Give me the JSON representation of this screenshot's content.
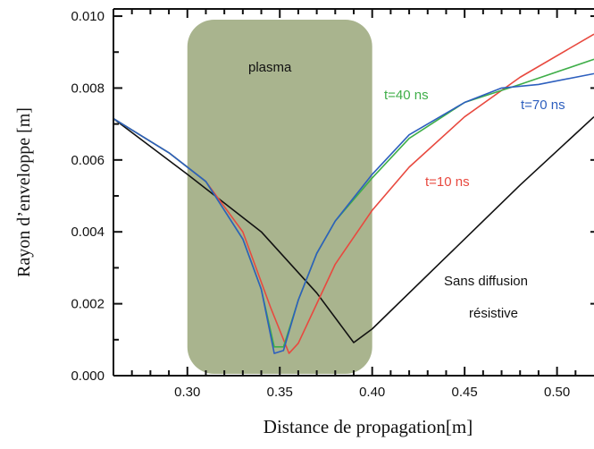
{
  "chart_data": {
    "type": "line",
    "xlabel": "Distance de propagation[m]",
    "ylabel": "Rayon d’enveloppe [m]",
    "xlim": [
      0.26,
      0.52
    ],
    "ylim": [
      0.0,
      0.0102
    ],
    "x_ticks": [
      "0.30",
      "0.35",
      "0.40",
      "0.45",
      "0.50"
    ],
    "x_tick_values": [
      0.3,
      0.35,
      0.4,
      0.45,
      0.5
    ],
    "y_ticks": [
      "0.000",
      "0.002",
      "0.004",
      "0.006",
      "0.008",
      "0.010"
    ],
    "y_tick_values": [
      0.0,
      0.002,
      0.004,
      0.006,
      0.008,
      0.01
    ],
    "plasma_region": {
      "label": "plasma",
      "x_start": 0.3,
      "x_end": 0.4,
      "color": "#a9b48e"
    },
    "series": [
      {
        "name": "Sans diffusion résistive",
        "color": "#111111",
        "x": [
          0.26,
          0.3,
          0.34,
          0.37,
          0.39,
          0.4,
          0.44,
          0.48,
          0.52
        ],
        "y": [
          0.00715,
          0.0056,
          0.004,
          0.0023,
          0.00092,
          0.0013,
          0.0033,
          0.0053,
          0.0072
        ]
      },
      {
        "name": "t=10 ns",
        "color": "#e8493f",
        "x": [
          0.26,
          0.29,
          0.31,
          0.33,
          0.345,
          0.355,
          0.36,
          0.37,
          0.38,
          0.4,
          0.42,
          0.45,
          0.48,
          0.52
        ],
        "y": [
          0.00715,
          0.0062,
          0.0054,
          0.004,
          0.0019,
          0.00062,
          0.0009,
          0.002,
          0.0031,
          0.0046,
          0.0058,
          0.0072,
          0.0083,
          0.0095
        ]
      },
      {
        "name": "t=40 ns",
        "color": "#3fae49",
        "x": [
          0.26,
          0.29,
          0.31,
          0.33,
          0.34,
          0.347,
          0.352,
          0.36,
          0.37,
          0.38,
          0.4,
          0.42,
          0.45,
          0.48,
          0.52
        ],
        "y": [
          0.00715,
          0.0062,
          0.0054,
          0.0038,
          0.0024,
          0.0008,
          0.0008,
          0.0021,
          0.0034,
          0.0043,
          0.0055,
          0.0066,
          0.0076,
          0.0081,
          0.0088
        ]
      },
      {
        "name": "t=70 ns",
        "color": "#2d5fbe",
        "x": [
          0.26,
          0.29,
          0.31,
          0.33,
          0.34,
          0.347,
          0.352,
          0.36,
          0.37,
          0.38,
          0.4,
          0.42,
          0.45,
          0.47,
          0.49,
          0.52
        ],
        "y": [
          0.00715,
          0.0062,
          0.0054,
          0.0038,
          0.0024,
          0.00062,
          0.0007,
          0.0021,
          0.0034,
          0.0043,
          0.0056,
          0.0067,
          0.0076,
          0.008,
          0.0081,
          0.0084
        ]
      }
    ],
    "annotations": [
      {
        "text": "plasma",
        "color": "#111111"
      },
      {
        "text": "t=40 ns",
        "color": "#3fae49"
      },
      {
        "text": "t=70 ns",
        "color": "#2d5fbe"
      },
      {
        "text": "t=10 ns",
        "color": "#e8493f"
      },
      {
        "text": "Sans diffusion",
        "color": "#111111"
      },
      {
        "text": "résistive",
        "color": "#111111"
      }
    ]
  }
}
